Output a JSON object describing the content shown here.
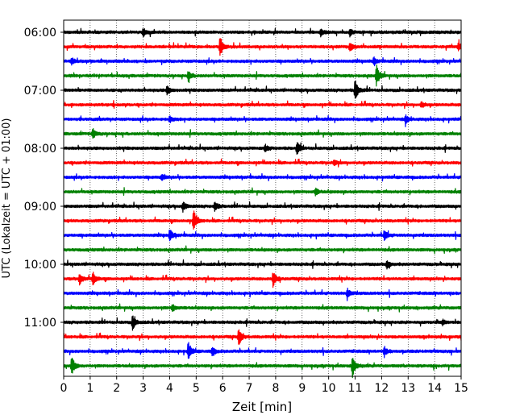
{
  "chart_data": {
    "type": "line",
    "title": "",
    "xlabel": "Zeit  [min]",
    "ylabel": "UTC (Lokalzeit = UTC + 01:00)",
    "xlim": [
      0,
      15
    ],
    "x_ticks": [
      "0",
      "1",
      "2",
      "3",
      "4",
      "5",
      "6",
      "7",
      "8",
      "9",
      "10",
      "11",
      "12",
      "13",
      "14",
      "15"
    ],
    "y_ticks": [
      "06:00",
      "07:00",
      "08:00",
      "09:00",
      "10:00",
      "11:00"
    ],
    "grid": "x",
    "trace_colors": [
      "#000000",
      "#ff0000",
      "#0000ff",
      "#008000"
    ],
    "row_labels": [
      "06:00",
      "06:15",
      "06:30",
      "06:45",
      "07:00",
      "07:15",
      "07:30",
      "07:45",
      "08:00",
      "08:15",
      "08:30",
      "08:45",
      "09:00",
      "09:15",
      "09:30",
      "09:45",
      "10:00",
      "10:15",
      "10:30",
      "10:45",
      "11:00",
      "11:15",
      "11:30",
      "11:45"
    ],
    "events": [
      {
        "row": 0,
        "t": 3.0,
        "amp": 0.35
      },
      {
        "row": 0,
        "t": 9.7,
        "amp": 0.35
      },
      {
        "row": 0,
        "t": 10.8,
        "amp": 0.3
      },
      {
        "row": 1,
        "t": 5.9,
        "amp": 1.0
      },
      {
        "row": 1,
        "t": 10.8,
        "amp": 0.4
      },
      {
        "row": 1,
        "t": 14.9,
        "amp": 0.4
      },
      {
        "row": 2,
        "t": 0.3,
        "amp": 0.35
      },
      {
        "row": 2,
        "t": 11.7,
        "amp": 0.3
      },
      {
        "row": 3,
        "t": 4.7,
        "amp": 0.45
      },
      {
        "row": 3,
        "t": 11.8,
        "amp": 1.0
      },
      {
        "row": 4,
        "t": 3.9,
        "amp": 0.4
      },
      {
        "row": 4,
        "t": 11.0,
        "amp": 1.0
      },
      {
        "row": 5,
        "t": 13.5,
        "amp": 0.25
      },
      {
        "row": 6,
        "t": 4.0,
        "amp": 0.3
      },
      {
        "row": 6,
        "t": 12.9,
        "amp": 0.4
      },
      {
        "row": 7,
        "t": 1.1,
        "amp": 0.45
      },
      {
        "row": 8,
        "t": 7.6,
        "amp": 0.3
      },
      {
        "row": 8,
        "t": 8.8,
        "amp": 0.55
      },
      {
        "row": 9,
        "t": 10.2,
        "amp": 0.25
      },
      {
        "row": 10,
        "t": 3.7,
        "amp": 0.25
      },
      {
        "row": 11,
        "t": 9.5,
        "amp": 0.3
      },
      {
        "row": 12,
        "t": 4.5,
        "amp": 0.45
      },
      {
        "row": 12,
        "t": 5.7,
        "amp": 0.4
      },
      {
        "row": 13,
        "t": 4.9,
        "amp": 1.0
      },
      {
        "row": 14,
        "t": 4.0,
        "amp": 0.55
      },
      {
        "row": 14,
        "t": 12.1,
        "amp": 0.5
      },
      {
        "row": 16,
        "t": 12.2,
        "amp": 0.35
      },
      {
        "row": 17,
        "t": 0.6,
        "amp": 0.55
      },
      {
        "row": 17,
        "t": 1.1,
        "amp": 0.6
      },
      {
        "row": 17,
        "t": 7.9,
        "amp": 0.7
      },
      {
        "row": 18,
        "t": 10.7,
        "amp": 0.45
      },
      {
        "row": 19,
        "t": 4.1,
        "amp": 0.3
      },
      {
        "row": 20,
        "t": 2.6,
        "amp": 0.7
      },
      {
        "row": 20,
        "t": 14.3,
        "amp": 0.25
      },
      {
        "row": 21,
        "t": 6.6,
        "amp": 0.85
      },
      {
        "row": 22,
        "t": 4.7,
        "amp": 0.85
      },
      {
        "row": 22,
        "t": 5.6,
        "amp": 0.4
      },
      {
        "row": 22,
        "t": 12.1,
        "amp": 0.4
      },
      {
        "row": 23,
        "t": 0.3,
        "amp": 0.85
      },
      {
        "row": 23,
        "t": 10.9,
        "amp": 1.0
      }
    ]
  }
}
